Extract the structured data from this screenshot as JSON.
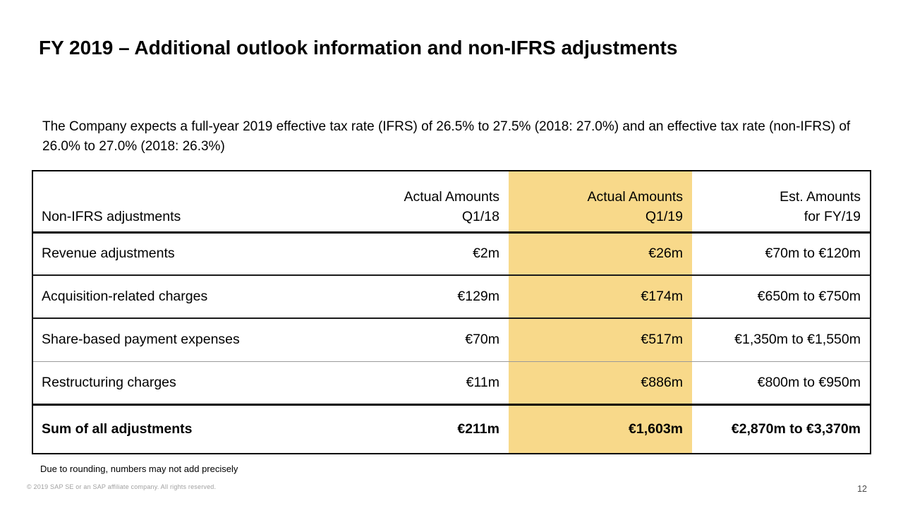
{
  "slide": {
    "title": "FY 2019 – Additional outlook information and non-IFRS adjustments",
    "body_text": "The Company expects a full-year 2019 effective tax rate (IFRS) of 26.5% to 27.5% (2018: 27.0%) and an effective tax rate (non-IFRS) of 26.0% to 27.0% (2018: 26.3%)",
    "footnote": "Due to rounding, numbers may not add precisely",
    "copyright": "© 2019 SAP SE or an SAP affiliate company. All rights reserved.",
    "page_number": "12"
  },
  "colors": {
    "highlight": "#F8D98A",
    "border_dark": "#000000",
    "border_light": "#9a9a9a"
  },
  "table": {
    "columns": {
      "label": {
        "title": "Non-IFRS adjustments"
      },
      "q118": {
        "line1": "Actual Amounts",
        "line2": "Q1/18"
      },
      "q119": {
        "line1": "Actual Amounts",
        "line2": "Q1/19",
        "highlighted": true
      },
      "fy19": {
        "line1": "Est. Amounts",
        "line2": "for FY/19"
      }
    },
    "rows": [
      {
        "label": "Revenue adjustments",
        "q118": "€2m",
        "q119": "€26m",
        "fy19": "€70m to €120m"
      },
      {
        "label": "Acquisition-related charges",
        "q118": "€129m",
        "q119": "€174m",
        "fy19": "€650m to €750m"
      },
      {
        "label": "Share-based payment expenses",
        "q118": "€70m",
        "q119": "€517m",
        "fy19": "€1,350m to €1,550m"
      },
      {
        "label": "Restructuring charges",
        "q118": "€11m",
        "q119": "€886m",
        "fy19": "€800m to €950m"
      },
      {
        "label": "Sum of all adjustments",
        "q118": "€211m",
        "q119": "€1,603m",
        "fy19": "€2,870m to €3,370m",
        "bold": true
      }
    ]
  }
}
